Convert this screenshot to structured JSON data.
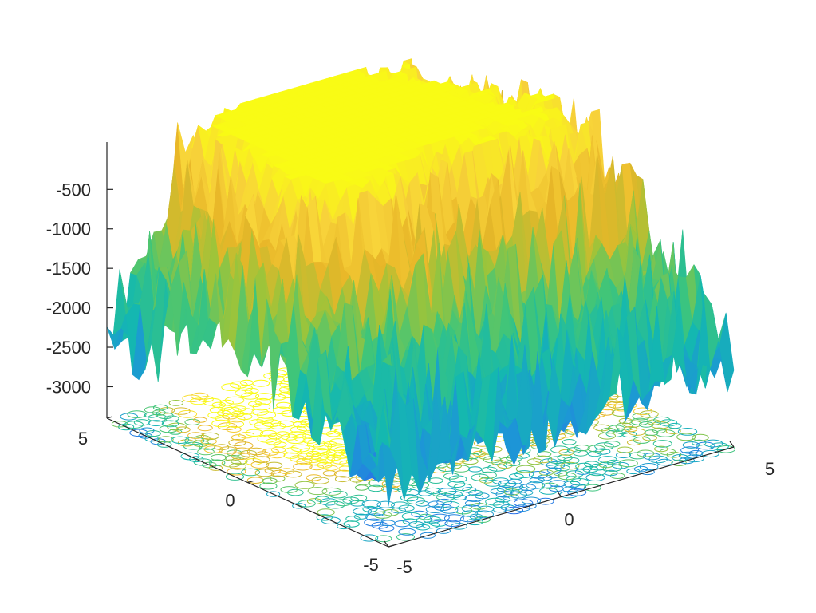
{
  "chart_data": {
    "type": "surface",
    "title": "",
    "xlabel": "",
    "ylabel": "",
    "zlabel": "",
    "colormap": "parula",
    "colormap_stops": [
      "#3e26a8",
      "#2f5ff0",
      "#1d96d6",
      "#14b8b0",
      "#3fc57a",
      "#9dc43a",
      "#e8b628",
      "#f8d33a",
      "#f9fb15"
    ],
    "contour_projection": true,
    "grid": false,
    "legend": "none",
    "x_range": [
      -5,
      5
    ],
    "y_range": [
      -5,
      5
    ],
    "z_range": [
      -3400,
      100
    ],
    "x_ticks": [
      {
        "value": -5,
        "label": "-5"
      },
      {
        "value": 0,
        "label": "0"
      },
      {
        "value": 5,
        "label": "5"
      }
    ],
    "y_ticks": [
      {
        "value": -5,
        "label": "-5"
      },
      {
        "value": 0,
        "label": "0"
      },
      {
        "value": 5,
        "label": "5"
      }
    ],
    "z_ticks": [
      {
        "value": -500,
        "label": "-500"
      },
      {
        "value": -1000,
        "label": "-1000"
      },
      {
        "value": -1500,
        "label": "-1500"
      },
      {
        "value": -2000,
        "label": "-2000"
      },
      {
        "value": -2500,
        "label": "-2500"
      },
      {
        "value": -3000,
        "label": "-3000"
      }
    ],
    "peaks": [
      {
        "x": -1.5,
        "y": 3.0,
        "z": 0,
        "spread": 2.6
      },
      {
        "x": 1.0,
        "y": 4.0,
        "z": -150,
        "spread": 2.4
      },
      {
        "x": 3.8,
        "y": 0.2,
        "z": -300,
        "spread": 2.2
      },
      {
        "x": -2.5,
        "y": 0.0,
        "z": -900,
        "spread": 1.6
      }
    ],
    "valleys": [
      {
        "x": -5.0,
        "y": 3.5,
        "z": -3300,
        "spread": 2.2
      }
    ],
    "base_level": -2400,
    "roughness_amplitude": 500
  }
}
